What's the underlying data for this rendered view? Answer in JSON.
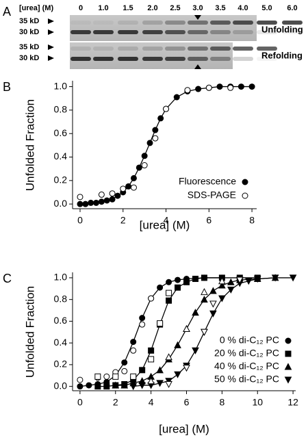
{
  "panel_a": {
    "label": "A",
    "urea_label": "[urea] (M)",
    "lanes": [
      "0",
      "1.0",
      "1.5",
      "2.0",
      "2.5",
      "3.0",
      "3.5",
      "4.0",
      "5.0",
      "6.0"
    ],
    "unfolding": {
      "markers": [
        "35 kD",
        "30 kD"
      ],
      "label": "Unfolding"
    },
    "refolding": {
      "markers": [
        "35 kD",
        "30 kD"
      ],
      "label": "Refolding"
    }
  },
  "chart_data": [
    {
      "type": "scatter",
      "panel_label": "B",
      "ylabel": "Unfolded Fraction",
      "xlabel": "[urea] (M)",
      "xlim": [
        -0.35,
        8.22
      ],
      "xticks": [
        0,
        2,
        4,
        6,
        8
      ],
      "ylim": [
        -0.04,
        1.05
      ],
      "yticks": [
        {
          "value": 0,
          "label": "0.0"
        },
        0.2,
        0.4,
        0.6,
        0.8,
        {
          "value": 1,
          "label": "1.0"
        }
      ],
      "legend": "lower right",
      "series": [
        {
          "name": "Fluorescence",
          "marker": "circle",
          "filled": true,
          "fit_line": true,
          "x": [
            0,
            0.25,
            0.5,
            0.75,
            1,
            1.25,
            1.5,
            1.75,
            2,
            2.25,
            2.5,
            2.75,
            3,
            3.25,
            3.5,
            3.75,
            4,
            4.5,
            5,
            5.5,
            6,
            6.5,
            7,
            7.5,
            8
          ],
          "values": [
            0.0,
            0.0,
            0.01,
            0.01,
            0.02,
            0.03,
            0.04,
            0.07,
            0.1,
            0.15,
            0.22,
            0.31,
            0.41,
            0.52,
            0.63,
            0.73,
            0.81,
            0.91,
            0.96,
            0.98,
            0.99,
            1.0,
            1.0,
            1.0,
            1.0
          ]
        },
        {
          "name": "SDS-PAGE",
          "marker": "circle",
          "filled": false,
          "x": [
            0,
            1,
            1.5,
            2,
            2.5,
            3,
            3.5,
            4,
            5,
            6,
            7
          ],
          "values": [
            0.06,
            0.08,
            0.09,
            0.13,
            0.14,
            0.33,
            0.56,
            0.81,
            0.97,
            0.99,
            0.99
          ]
        }
      ]
    },
    {
      "type": "scatter",
      "panel_label": "C",
      "ylabel": "Unfolded Fraction",
      "xlabel": "[urea] (M)",
      "xlim": [
        -0.42,
        12.15
      ],
      "xticks": [
        0,
        2,
        4,
        6,
        8,
        10,
        12
      ],
      "ylim": [
        -0.04,
        1.05
      ],
      "yticks": [
        {
          "value": 0,
          "label": "0.0"
        },
        0.2,
        0.4,
        0.6,
        0.8,
        {
          "value": 1,
          "label": "1.0"
        }
      ],
      "legend": "lower right",
      "series": [
        {
          "name": "0 % di-C₁₂ PC",
          "marker": "circle",
          "filled": true,
          "fit_line": true,
          "x": [
            0,
            0.5,
            1,
            1.5,
            2,
            2.5,
            3,
            3.5,
            4,
            4.5,
            5,
            5.5,
            6,
            7,
            8
          ],
          "values": [
            0.0,
            0.01,
            0.02,
            0.04,
            0.1,
            0.22,
            0.41,
            0.63,
            0.81,
            0.91,
            0.96,
            0.98,
            0.99,
            1.0,
            1.0
          ]
        },
        {
          "name": "20 % di-C₁₂ PC",
          "marker": "square",
          "filled": true,
          "fit_line": true,
          "x": [
            1,
            1.5,
            2,
            2.5,
            3,
            3.5,
            4,
            4.5,
            5,
            5.5,
            6,
            6.5,
            7,
            8,
            9,
            10
          ],
          "values": [
            0.0,
            0.0,
            0.01,
            0.02,
            0.06,
            0.15,
            0.33,
            0.57,
            0.79,
            0.91,
            0.96,
            0.99,
            1.0,
            1.0,
            1.0,
            1.0
          ]
        },
        {
          "name": "40 % di-C₁₂ PC",
          "marker": "triangle",
          "filled": true,
          "fit_line": true,
          "x": [
            2,
            2.5,
            3,
            3.5,
            4,
            4.5,
            5,
            5.5,
            6,
            6.5,
            7,
            7.5,
            8,
            8.5,
            9,
            10,
            11
          ],
          "values": [
            0.01,
            0.01,
            0.03,
            0.05,
            0.09,
            0.15,
            0.25,
            0.38,
            0.53,
            0.68,
            0.8,
            0.88,
            0.93,
            0.96,
            0.98,
            0.99,
            1.0
          ]
        },
        {
          "name": "50 % di-C₁₂ PC",
          "marker": "down-triangle",
          "filled": true,
          "fit_line": true,
          "x": [
            3,
            3.5,
            4,
            4.5,
            5,
            5.5,
            6,
            6.5,
            7,
            7.5,
            8,
            8.5,
            9,
            9.5,
            10,
            11,
            12
          ],
          "values": [
            0.0,
            0.01,
            0.01,
            0.03,
            0.05,
            0.11,
            0.19,
            0.33,
            0.5,
            0.67,
            0.81,
            0.89,
            0.95,
            0.97,
            0.99,
            1.0,
            1.0
          ]
        },
        {
          "marker": "circle",
          "filled": false,
          "x": [
            0,
            1,
            1.5,
            2,
            2.5,
            3,
            3.5,
            4
          ],
          "values": [
            0.06,
            0.08,
            0.09,
            0.13,
            0.14,
            0.33,
            0.57,
            0.81
          ]
        },
        {
          "marker": "square",
          "filled": false,
          "x": [
            1,
            2,
            3,
            4,
            4.5,
            5
          ],
          "values": [
            0.09,
            0.09,
            0.09,
            0.25,
            0.58,
            0.86
          ]
        },
        {
          "marker": "triangle",
          "filled": false,
          "x": [
            4,
            5,
            6,
            7,
            8
          ],
          "values": [
            0.05,
            0.27,
            0.53,
            0.87,
            0.97
          ]
        },
        {
          "marker": "down-triangle",
          "filled": false,
          "x": [
            5,
            6,
            7,
            7.5,
            9
          ],
          "values": [
            0.02,
            0.17,
            0.5,
            0.76,
            0.98
          ]
        }
      ]
    }
  ]
}
